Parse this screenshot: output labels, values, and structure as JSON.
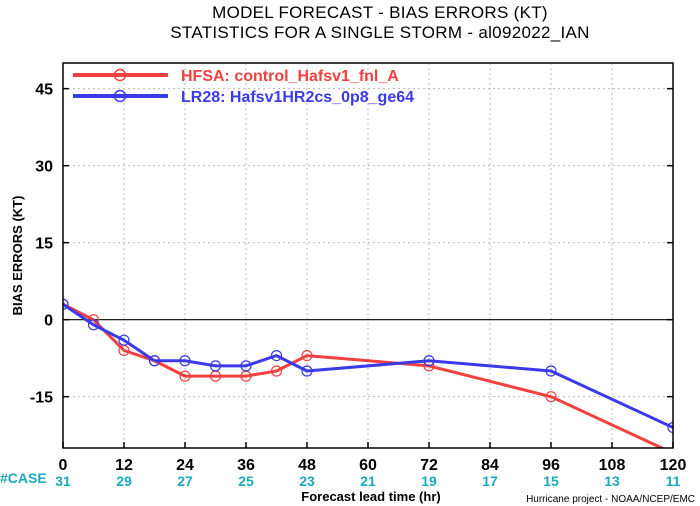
{
  "title_line1": "MODEL FORECAST - BIAS ERRORS (KT)",
  "title_line2": "STATISTICS FOR A SINGLE STORM - al092022_IAN",
  "case_label": "#CASE",
  "credit": "Hurricane project - NOAA/NCEP/EMC",
  "chart_data": {
    "type": "line",
    "title": "MODEL FORECAST - BIAS ERRORS (KT)",
    "subtitle": "STATISTICS FOR A SINGLE STORM - al092022_IAN",
    "xlabel": "Forecast lead time (hr)",
    "ylabel": "BIAS ERRORS (KT)",
    "xlim": [
      0,
      120
    ],
    "ylim": [
      -25,
      50
    ],
    "xticks": [
      0,
      12,
      24,
      36,
      48,
      60,
      72,
      84,
      96,
      108,
      120
    ],
    "yticks": [
      -15,
      0,
      15,
      30,
      45
    ],
    "case_counts": [
      "31",
      "29",
      "27",
      "25",
      "23",
      "21",
      "19",
      "17",
      "15",
      "13",
      "11"
    ],
    "grid": true,
    "zero_line": true,
    "legend_position": "top-left",
    "series": [
      {
        "name": "HFSA: control_Hafsv1_fnl_A",
        "color": "#f04040",
        "points": [
          [
            0,
            3
          ],
          [
            6,
            0
          ],
          [
            12,
            -6
          ],
          [
            18,
            -8
          ],
          [
            24,
            -11
          ],
          [
            30,
            -11
          ],
          [
            36,
            -11
          ],
          [
            42,
            -10
          ],
          [
            48,
            -7
          ],
          [
            72,
            -9
          ],
          [
            96,
            -15
          ],
          [
            120,
            -26
          ]
        ]
      },
      {
        "name": "LR28: Hafsv1HR2cs_0p8_ge64",
        "color": "#3a3ae8",
        "points": [
          [
            0,
            3
          ],
          [
            6,
            -1
          ],
          [
            12,
            -4
          ],
          [
            18,
            -8
          ],
          [
            24,
            -8
          ],
          [
            30,
            -9
          ],
          [
            36,
            -9
          ],
          [
            42,
            -7
          ],
          [
            48,
            -10
          ],
          [
            72,
            -8
          ],
          [
            96,
            -10
          ],
          [
            120,
            -21
          ]
        ]
      }
    ]
  }
}
